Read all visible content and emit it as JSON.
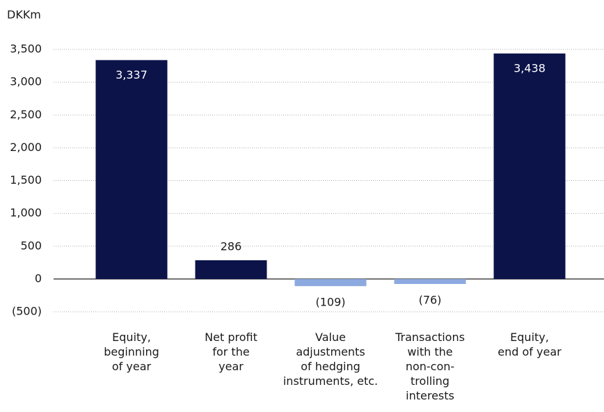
{
  "chart_data": {
    "type": "bar",
    "axis_label": "DKKm",
    "categories": [
      "Equity,\nbeginning\nof year",
      "Net profit\nfor the\nyear",
      "Value\nadjustments\nof hedging\ninstruments, etc.",
      "Transactions\nwith the\nnon-con-\ntrolling\ninterests",
      "Equity,\nend of year"
    ],
    "values": [
      3337,
      286,
      -109,
      -76,
      3438
    ],
    "value_labels": [
      "3,337",
      "286",
      "(109)",
      "(76)",
      "3,438"
    ],
    "colors": [
      "#0b1349",
      "#0b1349",
      "#8caae0",
      "#8caae0",
      "#0b1349"
    ],
    "ylim": [
      -500,
      3500
    ],
    "yticks": [
      {
        "value": -500,
        "label": "(500)"
      },
      0,
      500,
      {
        "value": 1000,
        "label": "1,000"
      },
      {
        "value": 1500,
        "label": "1,500"
      },
      {
        "value": 2000,
        "label": "2,000"
      },
      {
        "value": 2500,
        "label": "2,500"
      },
      {
        "value": 3000,
        "label": "3,000"
      },
      {
        "value": 3500,
        "label": "3,500"
      }
    ],
    "grid": true
  }
}
